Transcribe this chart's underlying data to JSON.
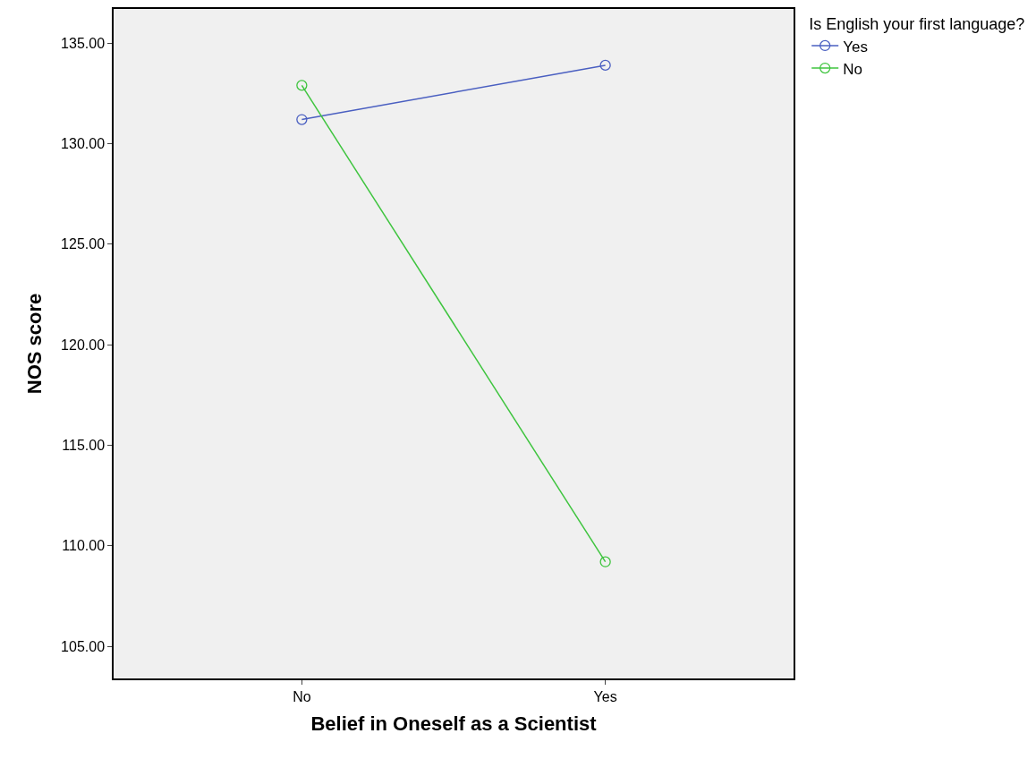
{
  "chart_data": {
    "type": "line",
    "xlabel": "Belief in Oneself as a Scientist",
    "ylabel": "NOS score",
    "legend_title": "Is English your first language?",
    "categories": [
      "No",
      "Yes"
    ],
    "series": [
      {
        "name": "Yes",
        "color": "#4a5fc1",
        "values": [
          131.2,
          133.9
        ]
      },
      {
        "name": "No",
        "color": "#3ec43e",
        "values": [
          132.9,
          109.2
        ]
      }
    ],
    "ylim": [
      103.4,
      136.7
    ],
    "yticks": [
      {
        "value": 105,
        "label": "105.00"
      },
      {
        "value": 110,
        "label": "110.00"
      },
      {
        "value": 115,
        "label": "115.00"
      },
      {
        "value": 120,
        "label": "120.00"
      },
      {
        "value": 125,
        "label": "125.00"
      },
      {
        "value": 130,
        "label": "130.00"
      },
      {
        "value": 135,
        "label": "135.00"
      }
    ],
    "grid": false,
    "legend": "top right",
    "marker": "circle",
    "line_style": "solid"
  }
}
